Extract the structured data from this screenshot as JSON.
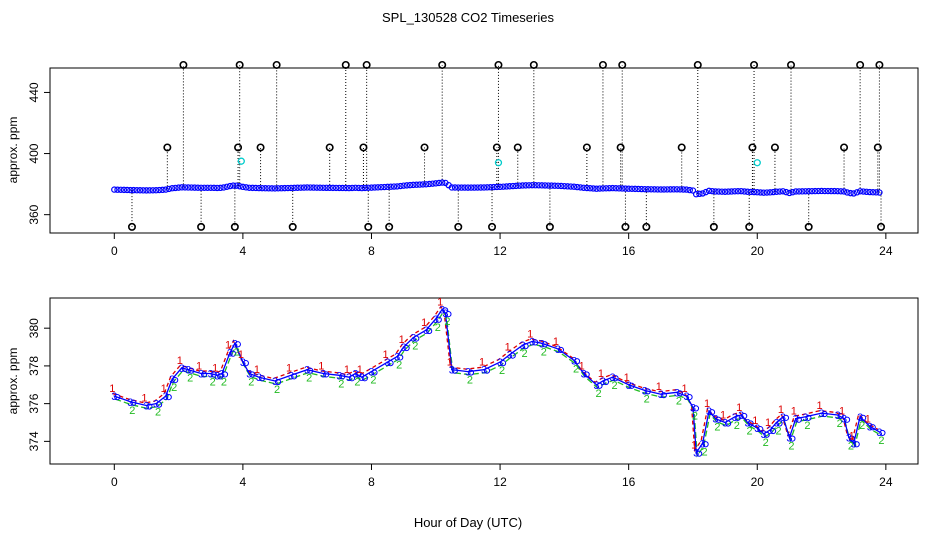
{
  "chart_data": [
    {
      "type": "scatter",
      "title": "SPL_130528  CO2 Timeseries",
      "xlabel": "",
      "ylabel": "approx. ppm",
      "xlim": [
        -2,
        25
      ],
      "ylim": [
        348,
        456
      ],
      "xticks": [
        "0",
        "4",
        "8",
        "12",
        "16",
        "20",
        "24"
      ],
      "yticks": [
        "360",
        "400",
        "440"
      ],
      "colors": {
        "raw": "#000000",
        "s1": "#dd0000",
        "s2": "#22bb22",
        "s3": "#0000ff",
        "ref": "#00cccc"
      },
      "spikes_high": [
        1.65,
        2.15,
        3.85,
        3.9,
        4.55,
        5.05,
        6.7,
        7.2,
        7.75,
        7.85,
        9.65,
        10.2,
        11.9,
        11.95,
        12.55,
        13.05,
        14.7,
        15.2,
        15.75,
        15.8,
        17.65,
        18.15,
        19.85,
        19.9,
        20.55,
        21.05,
        22.7,
        23.2,
        23.75,
        23.8
      ],
      "spikes_low": [
        0.55,
        2.7,
        3.75,
        5.55,
        7.9,
        8.55,
        10.7,
        11.75,
        13.55,
        15.9,
        16.55,
        18.65,
        19.75,
        21.6,
        23.85
      ],
      "reference_points": [
        {
          "x": 3.95,
          "y": 395
        },
        {
          "x": 11.95,
          "y": 394
        },
        {
          "x": 20.0,
          "y": 394
        }
      ],
      "high_level": 458,
      "mid_level": 404,
      "low_level": 352
    },
    {
      "type": "line",
      "title": "",
      "xlabel": "Hour of Day (UTC)",
      "ylabel": "approx. ppm",
      "xlim": [
        -2,
        25
      ],
      "ylim": [
        372.8,
        381.6
      ],
      "xticks": [
        "0",
        "4",
        "8",
        "12",
        "16",
        "20",
        "24"
      ],
      "yticks": [
        "374",
        "376",
        "378",
        "380"
      ],
      "series_labels": [
        "1",
        "2",
        "3"
      ],
      "x": [
        0.0,
        0.5,
        1.0,
        1.3,
        1.6,
        1.8,
        2.1,
        2.3,
        2.7,
        3.0,
        3.2,
        3.35,
        3.6,
        3.75,
        4.0,
        4.2,
        4.5,
        5.0,
        5.5,
        6.0,
        6.5,
        7.0,
        7.3,
        7.5,
        7.7,
        8.0,
        8.5,
        8.8,
        9.0,
        9.3,
        9.7,
        10.0,
        10.2,
        10.3,
        10.5,
        11.0,
        11.5,
        12.0,
        12.3,
        12.7,
        13.0,
        13.3,
        13.8,
        14.3,
        14.6,
        15.0,
        15.2,
        15.5,
        16.0,
        16.5,
        17.0,
        17.5,
        17.8,
        18.0,
        18.1,
        18.3,
        18.5,
        18.7,
        19.0,
        19.3,
        19.5,
        19.7,
        20.0,
        20.2,
        20.4,
        20.6,
        20.8,
        21.0,
        21.2,
        21.5,
        22.0,
        22.5,
        22.7,
        22.85,
        23.0,
        23.2,
        23.5,
        23.8
      ],
      "y": [
        376.4,
        376.1,
        375.9,
        376.0,
        376.4,
        377.3,
        377.9,
        377.8,
        377.6,
        377.6,
        377.5,
        377.6,
        378.7,
        379.2,
        378.2,
        377.6,
        377.4,
        377.2,
        377.5,
        377.8,
        377.6,
        377.5,
        377.4,
        377.6,
        377.4,
        377.7,
        378.2,
        378.5,
        379.0,
        379.5,
        379.9,
        380.5,
        381.0,
        380.8,
        377.8,
        377.7,
        377.8,
        378.2,
        378.6,
        379.1,
        379.3,
        379.2,
        378.9,
        378.3,
        377.6,
        377.0,
        377.2,
        377.4,
        377.0,
        376.7,
        376.5,
        376.6,
        376.4,
        375.8,
        373.4,
        373.9,
        375.6,
        375.2,
        375.0,
        375.3,
        375.4,
        375.0,
        374.7,
        374.4,
        374.6,
        375.0,
        375.3,
        374.2,
        375.2,
        375.3,
        375.5,
        375.4,
        375.2,
        374.2,
        373.9,
        375.3,
        374.8,
        374.5
      ]
    }
  ]
}
